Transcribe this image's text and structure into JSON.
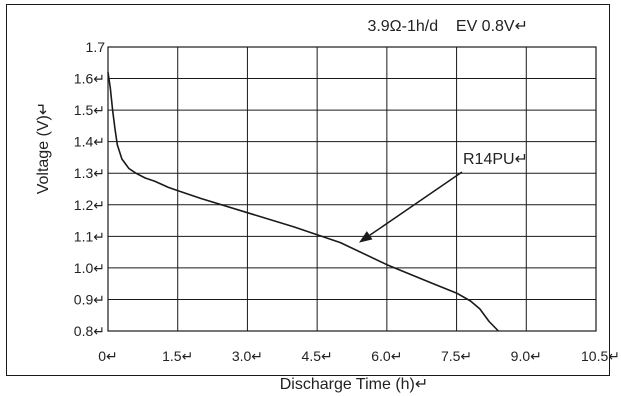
{
  "chart_data": {
    "type": "line",
    "annotation_top": "3.9Ω-1h/d    EV 0.8V↵",
    "xlabel": "Discharge Time (h)↵",
    "ylabel": "Voltage (V)↵",
    "xlim": [
      0,
      10.5
    ],
    "ylim": [
      0.8,
      1.7
    ],
    "grid": true,
    "x_ticks": [
      0,
      1.5,
      3.0,
      4.5,
      6.0,
      7.5,
      9.0,
      10.5
    ],
    "x_tick_labels": [
      "0↵",
      "1.5↵",
      "3.0↵",
      "4.5↵",
      "6.0↵",
      "7.5↵",
      "9.0↵",
      "10.5↵"
    ],
    "y_ticks": [
      0.8,
      0.9,
      1.0,
      1.1,
      1.2,
      1.3,
      1.4,
      1.5,
      1.6,
      1.7
    ],
    "y_tick_labels": [
      "0.8↵",
      "0.9↵",
      "1.0↵",
      "1.1↵",
      "1.2↵",
      "1.3↵",
      "1.4↵",
      "1.5↵",
      "1.6↵",
      "1.7"
    ],
    "series": [
      {
        "name": "R14PU↵",
        "x": [
          0,
          0.05,
          0.1,
          0.15,
          0.2,
          0.3,
          0.45,
          0.6,
          0.8,
          1.0,
          1.3,
          1.5,
          2.0,
          3.0,
          4.0,
          5.0,
          6.0,
          6.5,
          7.0,
          7.5,
          7.8,
          8.0,
          8.2,
          8.4
        ],
        "y": [
          1.62,
          1.57,
          1.5,
          1.44,
          1.39,
          1.345,
          1.315,
          1.3,
          1.285,
          1.275,
          1.255,
          1.245,
          1.22,
          1.175,
          1.13,
          1.08,
          1.01,
          0.98,
          0.95,
          0.92,
          0.895,
          0.87,
          0.83,
          0.8
        ]
      }
    ],
    "callout": {
      "text": "R14PU↵",
      "points_to": {
        "x": 5.4,
        "y": 1.08
      }
    },
    "colors": {
      "line": "#1a1a1a",
      "grid": "#1a1a1a",
      "frame": "#1a1a1a",
      "text": "#222222"
    }
  }
}
